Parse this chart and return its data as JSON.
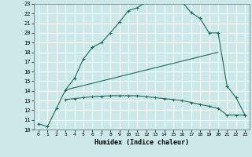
{
  "title": "",
  "xlabel": "Humidex (Indice chaleur)",
  "xlim": [
    -0.5,
    23.5
  ],
  "ylim": [
    10,
    23
  ],
  "xticks": [
    0,
    1,
    2,
    3,
    4,
    5,
    6,
    7,
    8,
    9,
    10,
    11,
    12,
    13,
    14,
    15,
    16,
    17,
    18,
    19,
    20,
    21,
    22,
    23
  ],
  "yticks": [
    10,
    11,
    12,
    13,
    14,
    15,
    16,
    17,
    18,
    19,
    20,
    21,
    22,
    23
  ],
  "bg_color": "#cce8e8",
  "line_color": "#1a6b5a",
  "line1_x": [
    0,
    1,
    2,
    3,
    4,
    5,
    6,
    7,
    8,
    9,
    10,
    11,
    12,
    13,
    14,
    15,
    16,
    17,
    18,
    19,
    20,
    21,
    22,
    23
  ],
  "line1_y": [
    10.6,
    10.3,
    12.2,
    14.1,
    15.3,
    17.3,
    18.5,
    19.0,
    20.0,
    21.1,
    22.3,
    22.6,
    23.2,
    23.3,
    23.2,
    23.2,
    23.2,
    22.1,
    21.5,
    20.0,
    20.0,
    14.5,
    13.3,
    11.5
  ],
  "line2_x": [
    3,
    20
  ],
  "line2_y": [
    14.1,
    18.0
  ],
  "line3_x": [
    3,
    4,
    5,
    6,
    7,
    8,
    9,
    10,
    11,
    12,
    13,
    14,
    15,
    16,
    17,
    18,
    19,
    20,
    21,
    22,
    23
  ],
  "line3_y": [
    13.1,
    13.2,
    13.3,
    13.4,
    13.45,
    13.5,
    13.5,
    13.5,
    13.5,
    13.4,
    13.3,
    13.2,
    13.1,
    13.0,
    12.8,
    12.6,
    12.4,
    12.2,
    11.5,
    11.5,
    11.5
  ]
}
